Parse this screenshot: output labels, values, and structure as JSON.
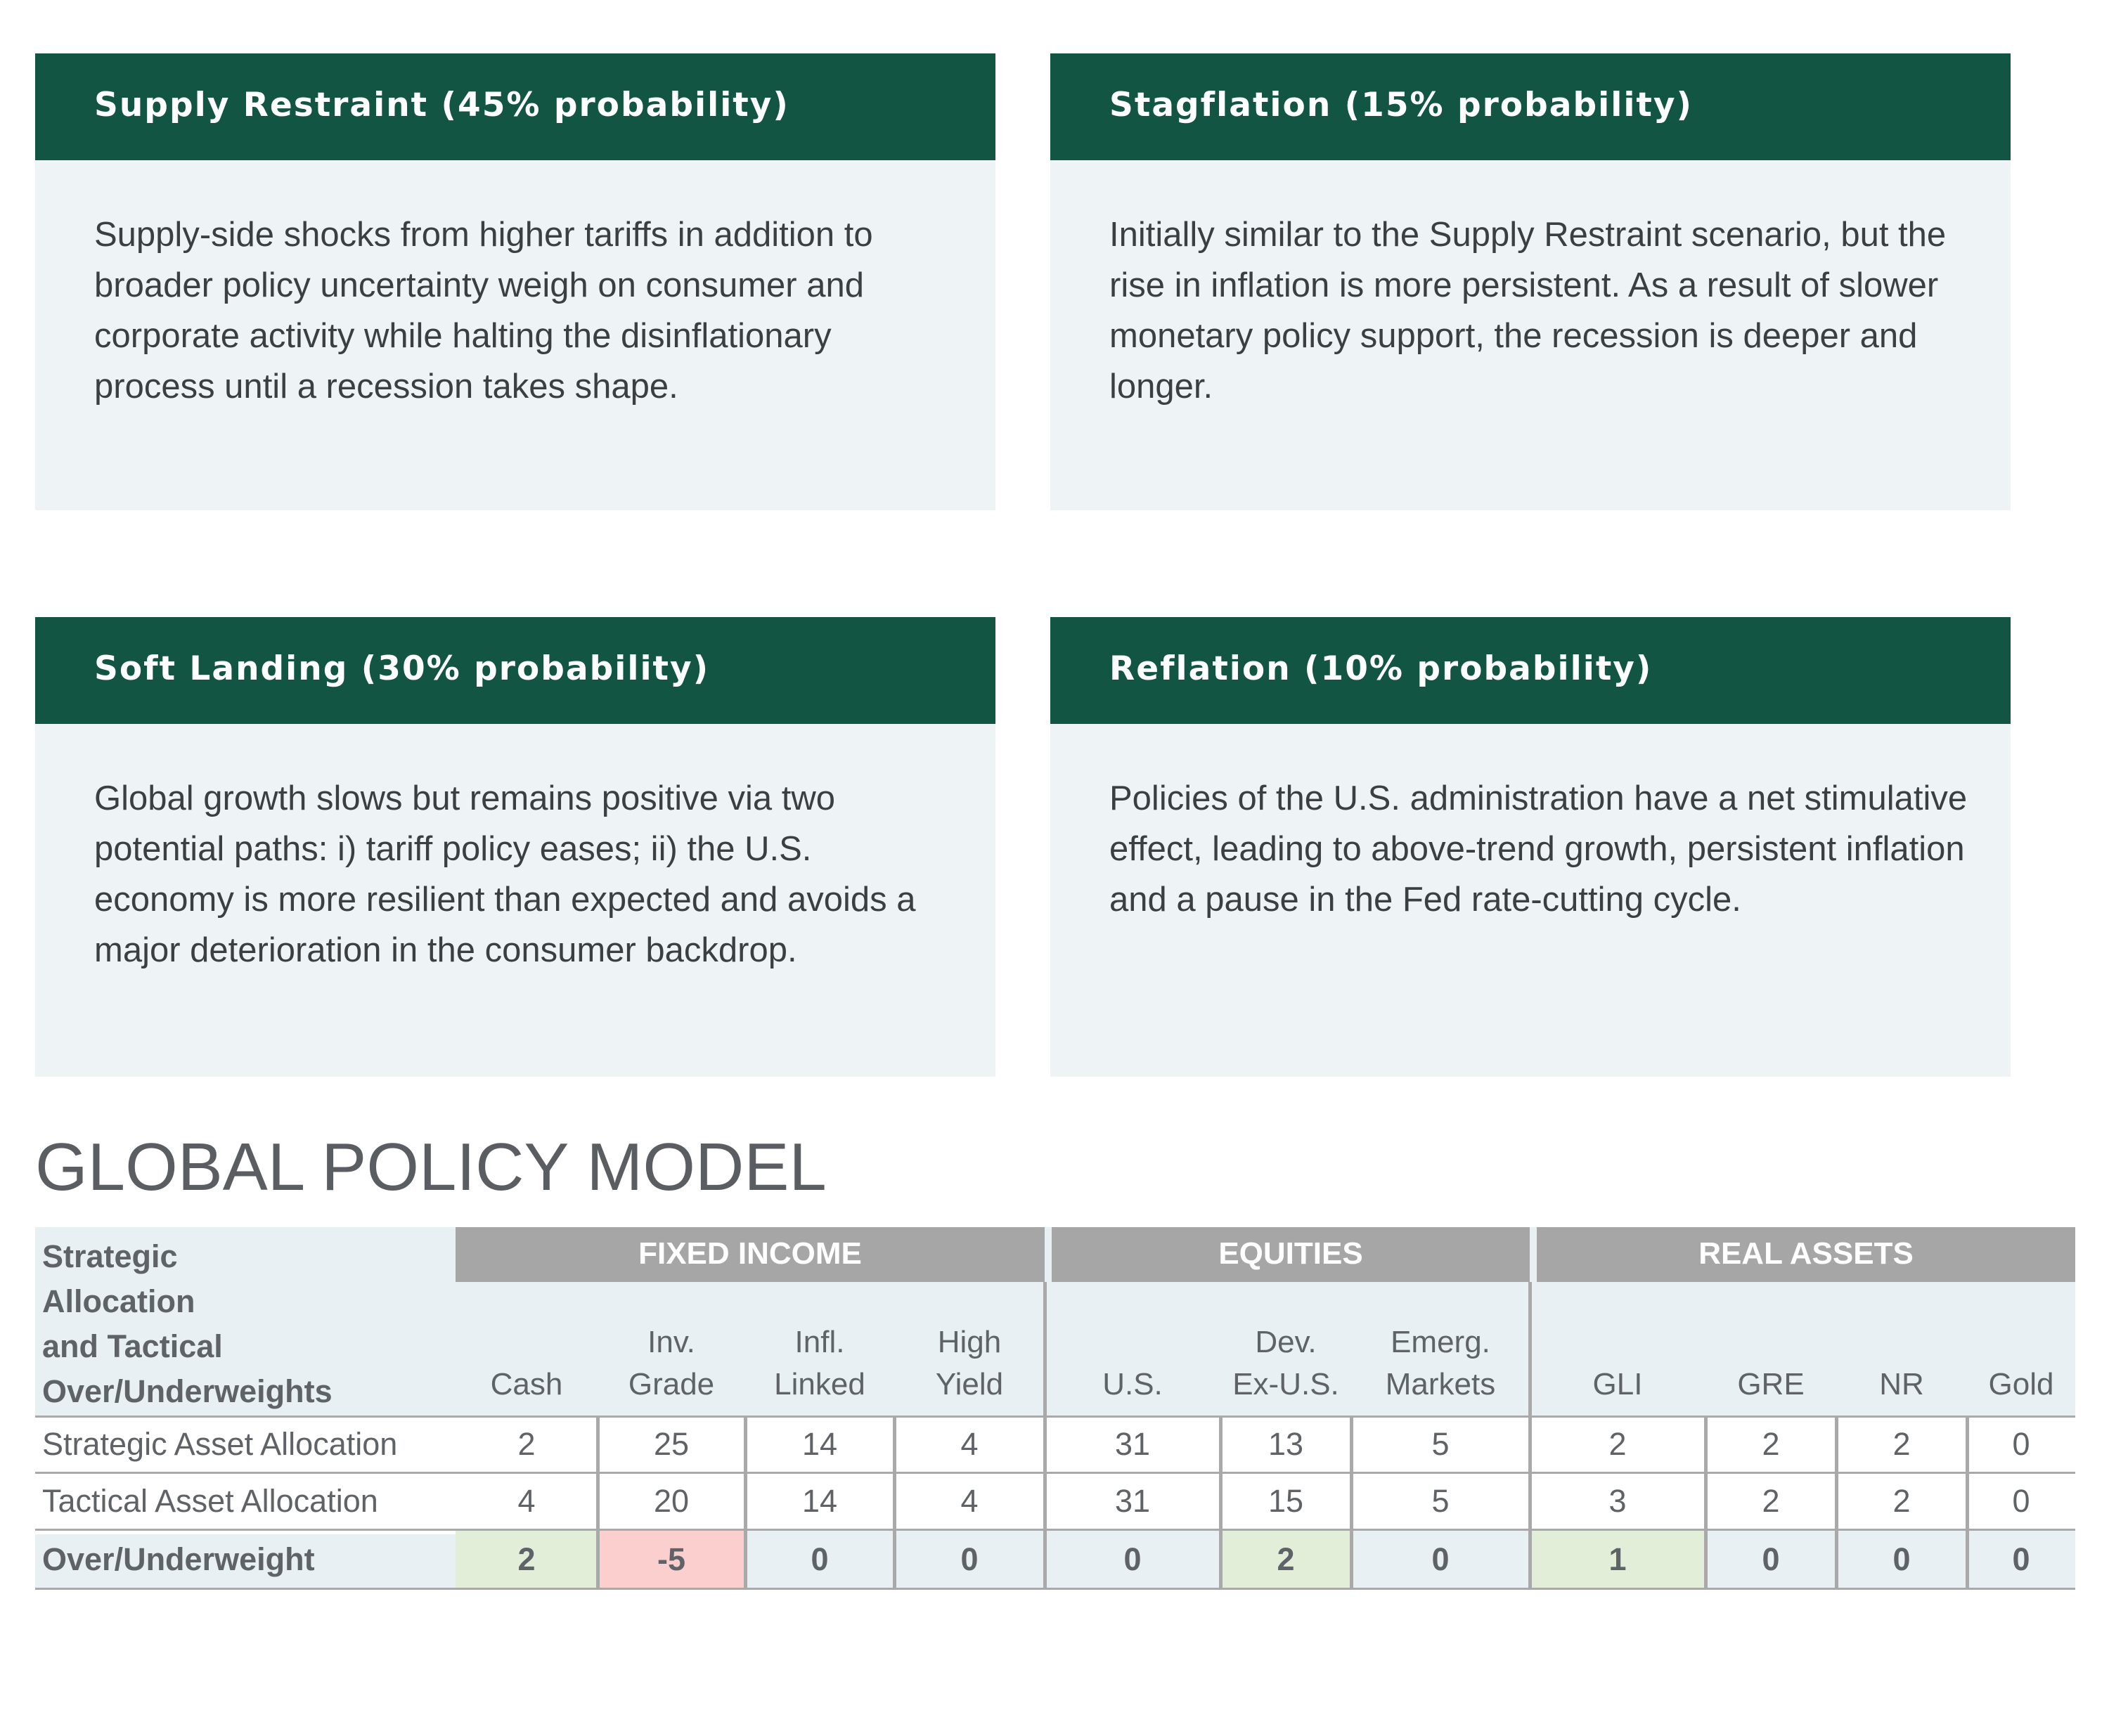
{
  "scenarios": [
    {
      "title": "Supply Restraint (45% probability)",
      "body": "Supply-side shocks from higher tariffs in addition to broader policy uncertainty weigh on consumer and corporate activity while halting the disinflationary process until a recession takes shape."
    },
    {
      "title": "Stagflation (15% probability)",
      "body": "Initially similar to the Supply Restraint scenario, but the rise in inflation is more persistent. As a result of slower monetary policy support, the recession is deeper and longer."
    },
    {
      "title": "Soft Landing (30% probability)",
      "body": "Global growth slows but remains positive via two potential paths: i) tariff policy eases; ii) the U.S. economy is more resilient than expected and avoids a major deterioration in the consumer backdrop."
    },
    {
      "title": "Reflation (10% probability)",
      "body": "Policies of the U.S. administration have a net stimulative effect, leading to above-trend growth, persistent inflation and a pause in the Fed rate-cutting cycle."
    }
  ],
  "model": {
    "title": "GLOBAL POLICY MODEL",
    "row_header": [
      "Strategic",
      "Allocation",
      "and Tactical",
      "Over/Underweights"
    ],
    "groups": [
      "FIXED INCOME",
      "EQUITIES",
      "REAL ASSETS"
    ],
    "columns": [
      [
        "",
        "Cash"
      ],
      [
        "Inv.",
        "Grade"
      ],
      [
        "Infl.",
        "Linked"
      ],
      [
        "High",
        "Yield"
      ],
      [
        "",
        "U.S."
      ],
      [
        "Dev.",
        "Ex-U.S."
      ],
      [
        "Emerg.",
        "Markets"
      ],
      [
        "",
        "GLI"
      ],
      [
        "",
        "GRE"
      ],
      [
        "",
        "NR"
      ],
      [
        "",
        "Gold"
      ]
    ],
    "rows": [
      {
        "label": "Strategic Asset Allocation",
        "values": [
          "2",
          "25",
          "14",
          "4",
          "31",
          "13",
          "5",
          "2",
          "2",
          "2",
          "0"
        ]
      },
      {
        "label": "Tactical Asset Allocation",
        "values": [
          "4",
          "20",
          "14",
          "4",
          "31",
          "15",
          "5",
          "3",
          "2",
          "2",
          "0"
        ]
      },
      {
        "label": "Over/Underweight",
        "values": [
          "2",
          "-5",
          "0",
          "0",
          "0",
          "2",
          "0",
          "1",
          "0",
          "0",
          "0"
        ]
      }
    ],
    "colors": {
      "overweight": "#e2eed8",
      "underweight": "#fbcfcd",
      "neutral": "#e8f0f4"
    }
  }
}
